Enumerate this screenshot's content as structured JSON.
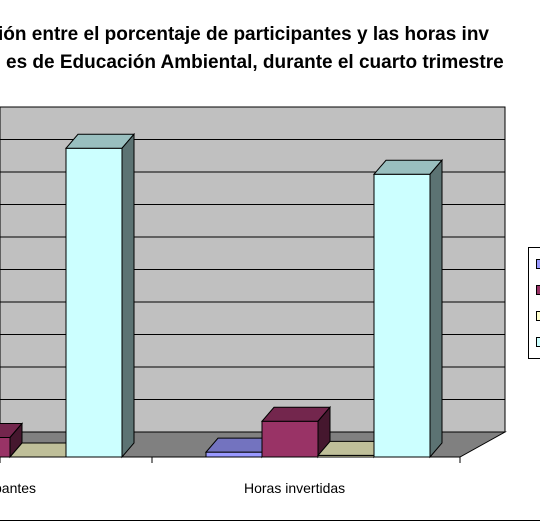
{
  "chart_data": {
    "type": "bar",
    "title_lines": [
      "ión entre el porcentaje de participantes y las horas inv",
      "es de Educación Ambiental, durante el cuarto trimestre"
    ],
    "categories": [
      "pantes",
      "Horas invertidas"
    ],
    "series": [
      {
        "values": [
          0,
          1.5
        ],
        "color": "#9999ff"
      },
      {
        "values": [
          6,
          11
        ],
        "color": "#993366"
      },
      {
        "values": [
          0,
          0.5
        ],
        "color": "#ffffcc"
      },
      {
        "values": [
          95,
          87
        ],
        "color": "#ccffff"
      }
    ],
    "ylim": [
      0,
      100
    ],
    "grid": true,
    "legend_position": "right",
    "plot_background": "#c0c0c0",
    "floor_color": "#808080"
  }
}
